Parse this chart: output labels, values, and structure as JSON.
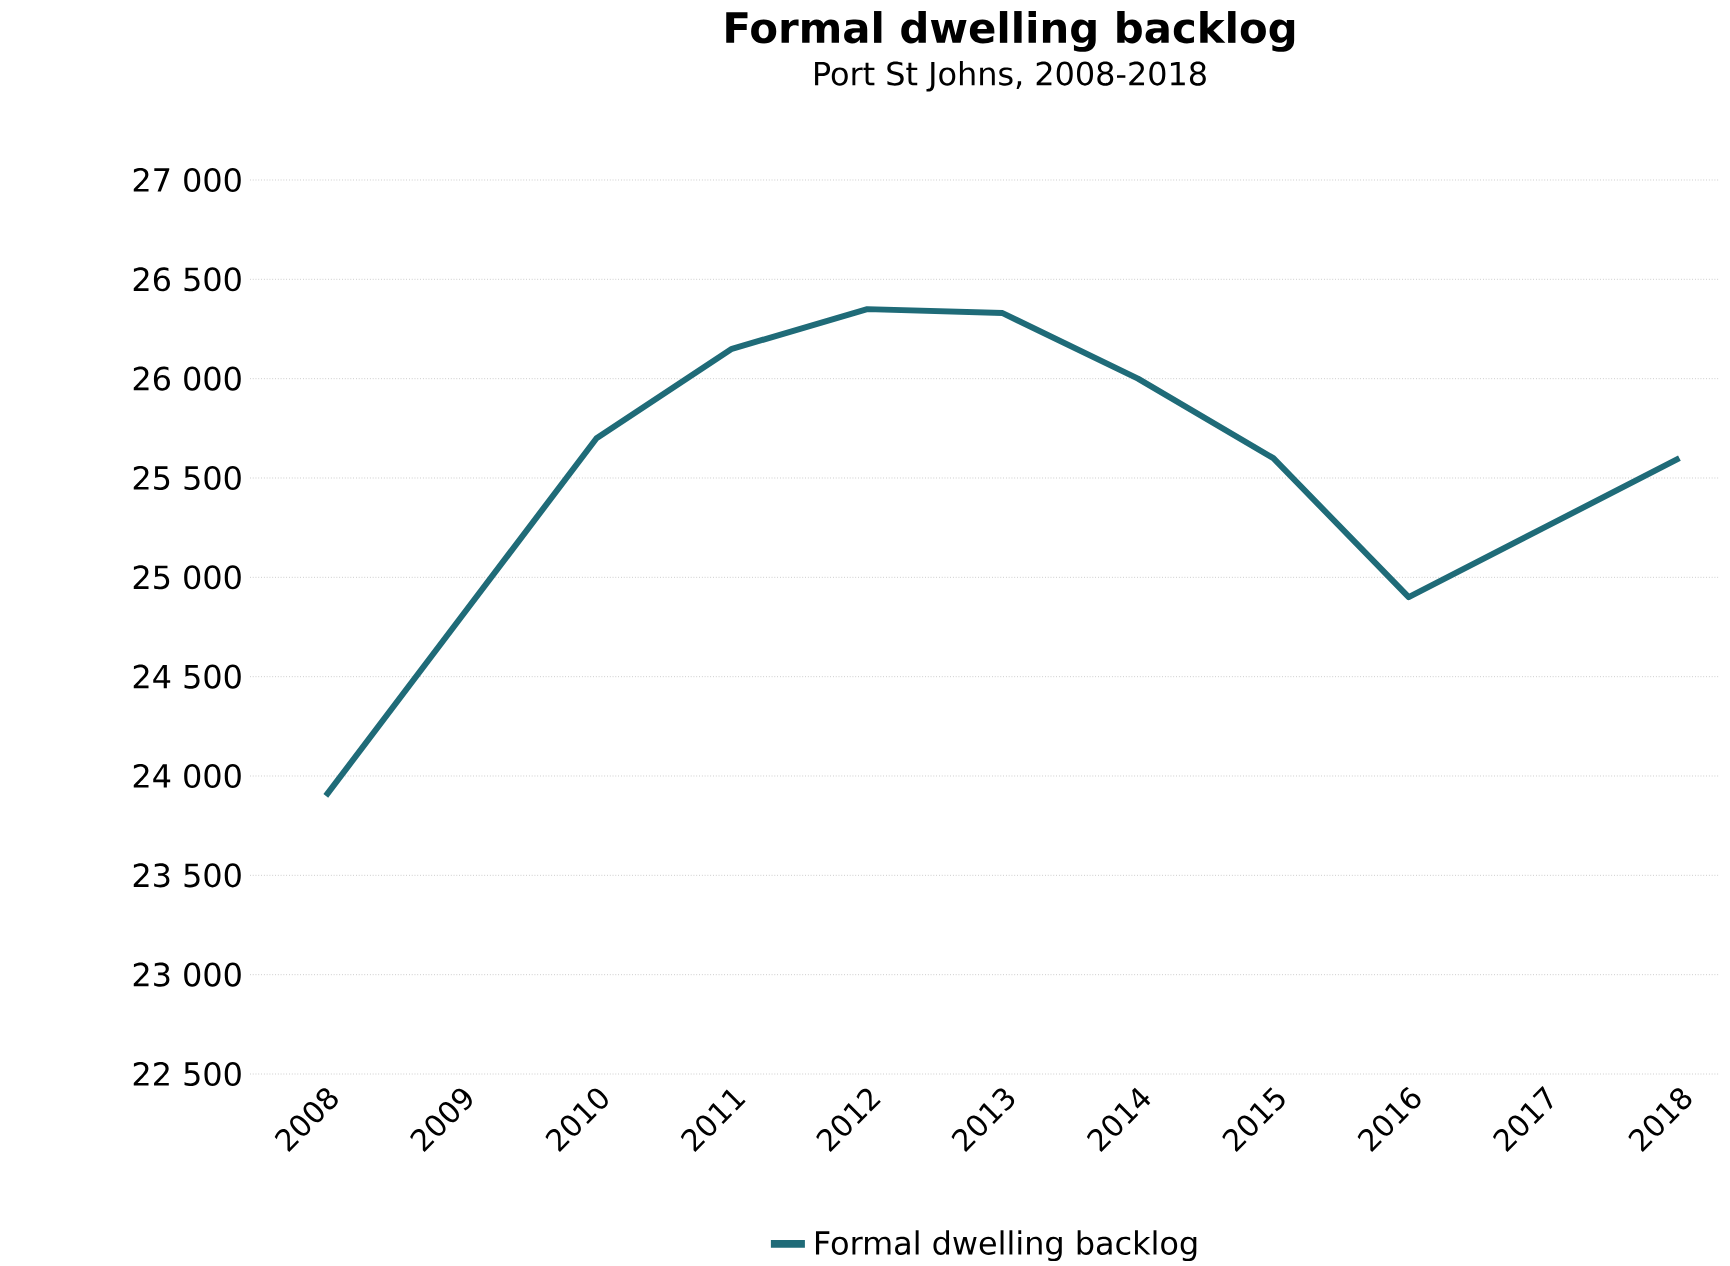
{
  "chart_data": {
    "type": "line",
    "title": "Formal dwelling backlog",
    "subtitle": "Port St Johns, 2008-2018",
    "categories": [
      "2008",
      "2009",
      "2010",
      "2011",
      "2012",
      "2013",
      "2014",
      "2015",
      "2016",
      "2017",
      "2018"
    ],
    "series": [
      {
        "name": "Formal dwelling backlog",
        "color": "#1f6b78",
        "values": [
          23900,
          24800,
          25700,
          26150,
          26350,
          26330,
          26000,
          25600,
          24900,
          25250,
          25600
        ]
      }
    ],
    "ylim": [
      22500,
      27000
    ],
    "yticks": [
      {
        "value": 22500,
        "label": "22 500"
      },
      {
        "value": 23000,
        "label": "23 000"
      },
      {
        "value": 23500,
        "label": "23 500"
      },
      {
        "value": 24000,
        "label": "24 000"
      },
      {
        "value": 24500,
        "label": "24 500"
      },
      {
        "value": 25000,
        "label": "25 000"
      },
      {
        "value": 25500,
        "label": "25 500"
      },
      {
        "value": 26000,
        "label": "26 000"
      },
      {
        "value": 26500,
        "label": "26 500"
      },
      {
        "value": 27000,
        "label": "27 000"
      }
    ],
    "grid": "y",
    "legend": "bottom"
  }
}
